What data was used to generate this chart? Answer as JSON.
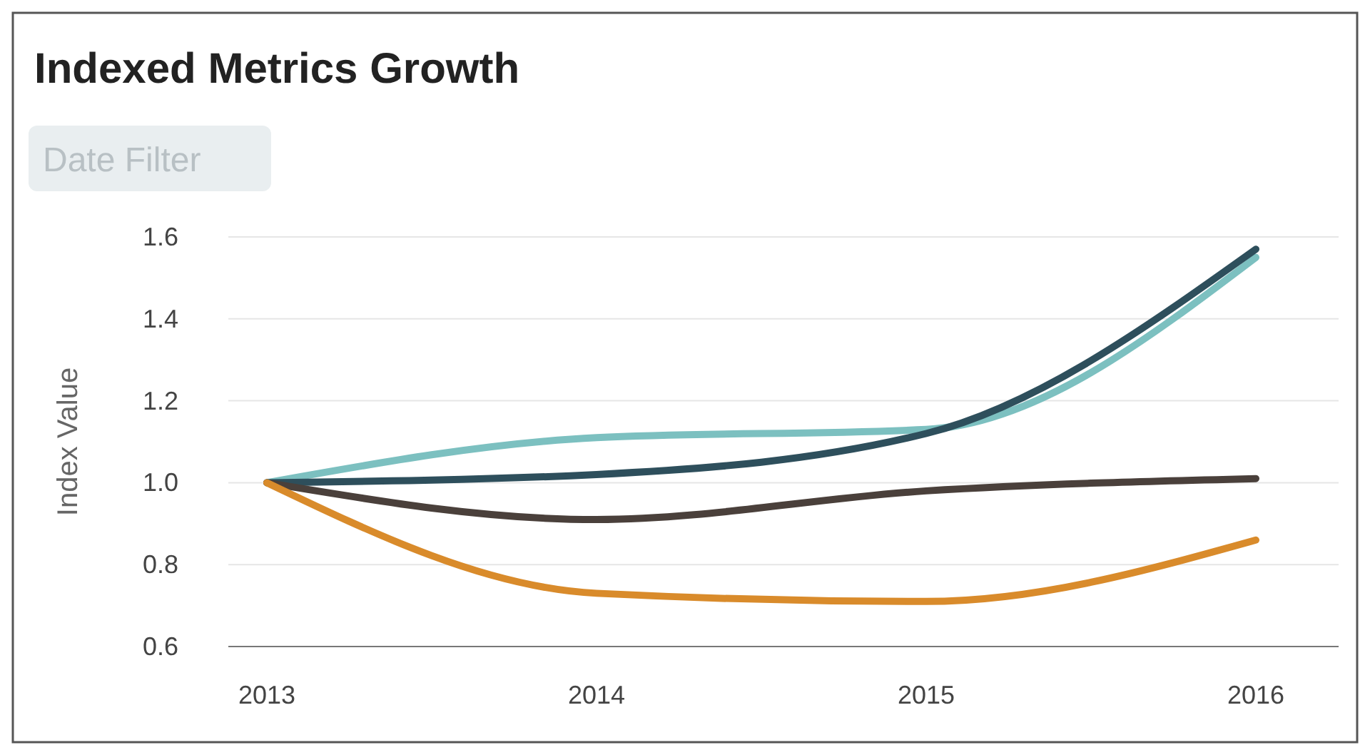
{
  "chart_data": {
    "type": "line",
    "title": "Indexed Metrics Growth",
    "annotations": [
      "Date Filter"
    ],
    "ylabel": "Index Value",
    "categories": [
      "2013",
      "2014",
      "2015",
      "2016"
    ],
    "series": [
      {
        "color": "#7cc0c0",
        "values": [
          1.0,
          1.11,
          1.13,
          1.55
        ]
      },
      {
        "color": "#2e4f5c",
        "values": [
          1.0,
          1.02,
          1.12,
          1.57
        ]
      },
      {
        "color": "#4a403b",
        "values": [
          1.0,
          0.91,
          0.98,
          1.01
        ]
      },
      {
        "color": "#d98b2b",
        "values": [
          1.0,
          0.73,
          0.71,
          0.86
        ]
      }
    ],
    "ylim": [
      0.6,
      1.6
    ],
    "yticks": [
      0.6,
      0.8,
      {
        "value": 1,
        "label": "1.0"
      },
      1.2,
      1.4,
      1.6
    ],
    "grid": "y",
    "line_style": "solid",
    "marker": "none"
  }
}
